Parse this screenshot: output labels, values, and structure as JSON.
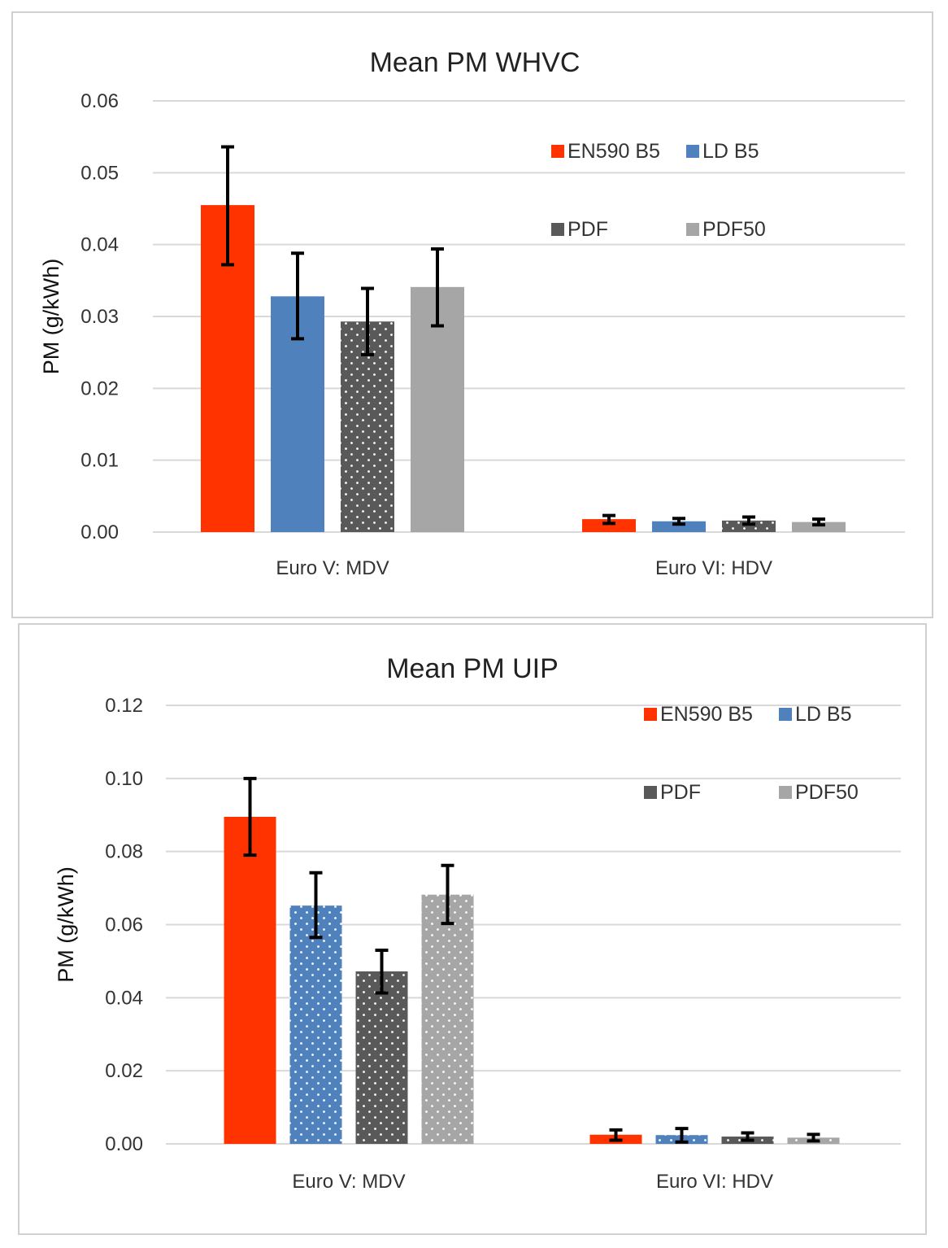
{
  "colors": {
    "EN590 B5": "#ff3300",
    "LD B5": "#4f81bd",
    "PDF": "#595959",
    "PDF50": "#a6a6a6"
  },
  "chart_data": [
    {
      "type": "bar",
      "title": "Mean PM WHVC",
      "xlabel": "",
      "ylabel": "PM (g/kWh)",
      "ylim": [
        0,
        0.06
      ],
      "yticks": [
        0,
        0.01,
        0.02,
        0.03,
        0.04,
        0.05,
        0.06
      ],
      "ytick_labels": [
        "0.00",
        "0.01",
        "0.02",
        "0.03",
        "0.04",
        "0.05",
        "0.06"
      ],
      "grid": true,
      "legend_position": "top-right",
      "categories": [
        "Euro V: MDV",
        "Euro VI: HDV"
      ],
      "series": [
        {
          "name": "EN590 B5",
          "values": [
            0.0455,
            0.0018
          ],
          "err_low": [
            0.0372,
            0.0012
          ],
          "err_high": [
            0.0536,
            0.0023
          ],
          "pattern": "solid"
        },
        {
          "name": "LD B5",
          "values": [
            0.0328,
            0.0015
          ],
          "err_low": [
            0.0269,
            0.0011
          ],
          "err_high": [
            0.0388,
            0.0019
          ],
          "pattern": "solid"
        },
        {
          "name": "PDF",
          "values": [
            0.0293,
            0.0016
          ],
          "err_low": [
            0.0247,
            0.0011
          ],
          "err_high": [
            0.0339,
            0.0021
          ],
          "pattern": "dots"
        },
        {
          "name": "PDF50",
          "values": [
            0.0341,
            0.0014
          ],
          "err_low": [
            0.0287,
            0.001
          ],
          "err_high": [
            0.0394,
            0.0018
          ],
          "pattern": "solid"
        }
      ]
    },
    {
      "type": "bar",
      "title": "Mean PM UIP",
      "xlabel": "",
      "ylabel": "PM (g/kWh)",
      "ylim": [
        0,
        0.12
      ],
      "yticks": [
        0,
        0.02,
        0.04,
        0.06,
        0.08,
        0.1,
        0.12
      ],
      "ytick_labels": [
        "0.00",
        "0.02",
        "0.04",
        "0.06",
        "0.08",
        "0.10",
        "0.12"
      ],
      "grid": true,
      "legend_position": "top-right",
      "categories": [
        "Euro V: MDV",
        "Euro VI: HDV"
      ],
      "series": [
        {
          "name": "EN590 B5",
          "values": [
            0.0895,
            0.0025
          ],
          "err_low": [
            0.079,
            0.001
          ],
          "err_high": [
            0.1,
            0.0038
          ],
          "pattern": "solid"
        },
        {
          "name": "LD B5",
          "values": [
            0.0652,
            0.0024
          ],
          "err_low": [
            0.0565,
            0.0005
          ],
          "err_high": [
            0.0742,
            0.0042
          ],
          "pattern": "dots"
        },
        {
          "name": "PDF",
          "values": [
            0.0472,
            0.002
          ],
          "err_low": [
            0.0413,
            0.001
          ],
          "err_high": [
            0.053,
            0.003
          ],
          "pattern": "dots"
        },
        {
          "name": "PDF50",
          "values": [
            0.0682,
            0.0017
          ],
          "err_low": [
            0.0603,
            0.0008
          ],
          "err_high": [
            0.0762,
            0.0026
          ],
          "pattern": "dots"
        }
      ]
    }
  ]
}
